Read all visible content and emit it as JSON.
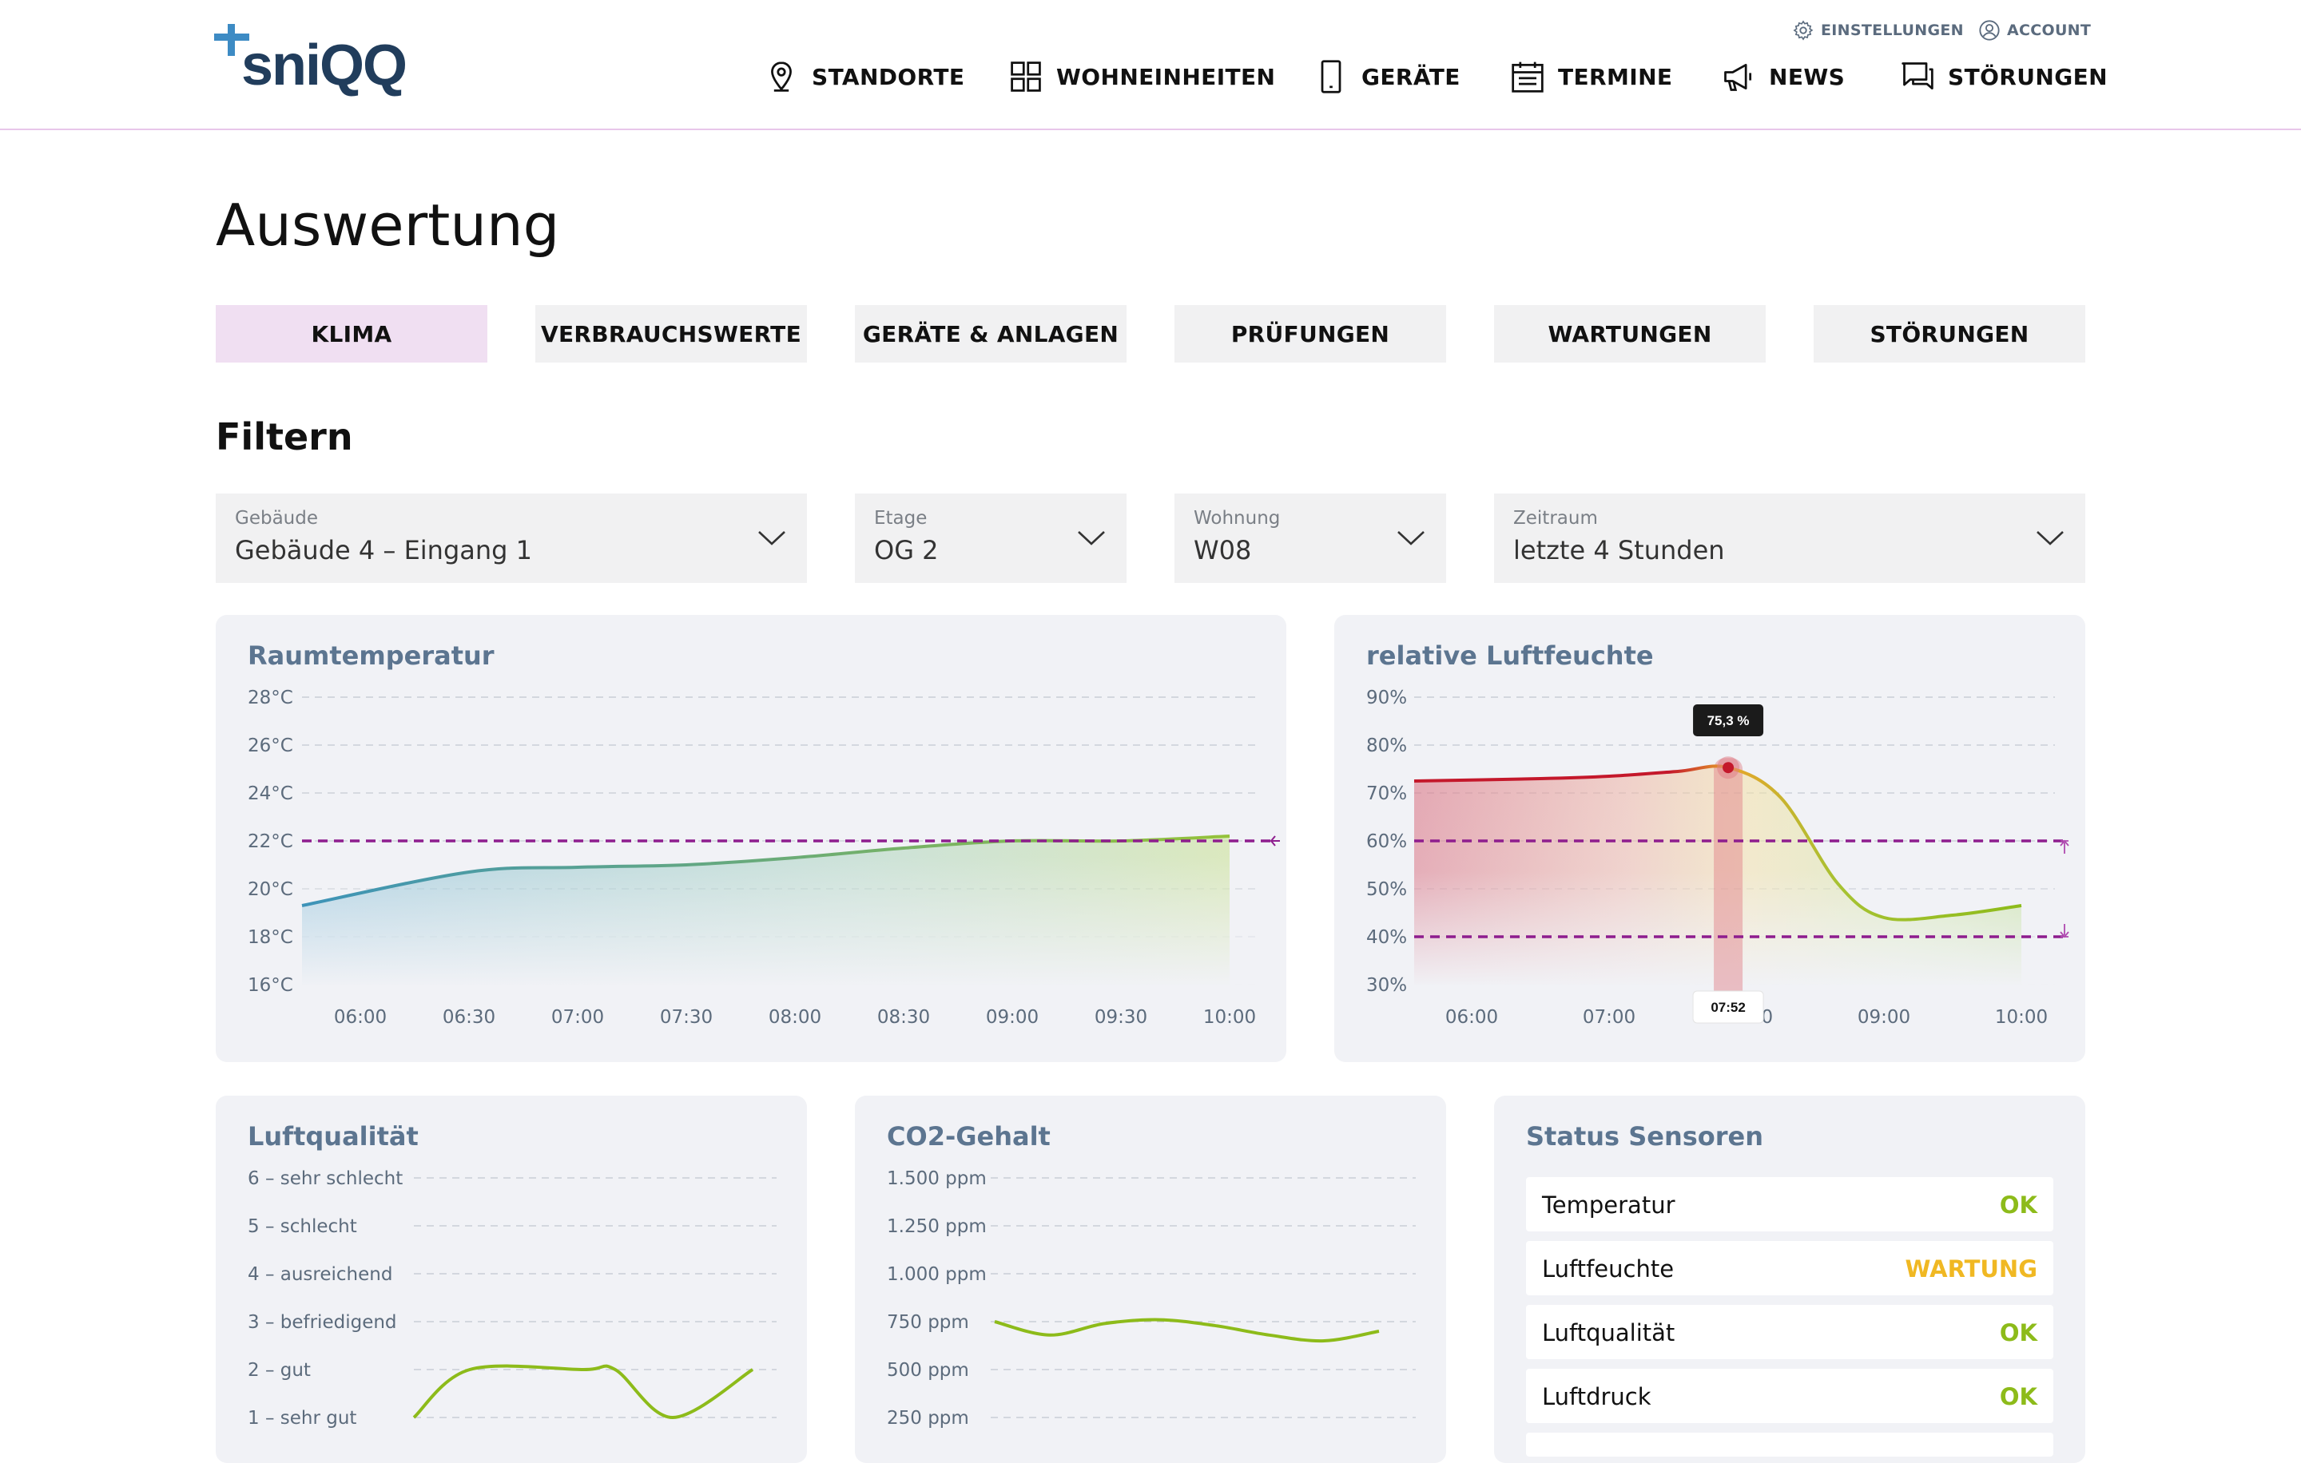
{
  "brand": {
    "logo_text": "sniQQ"
  },
  "colors": {
    "accent_pink": "#f0dff2",
    "ok": "#8dbb1a",
    "warning": "#f0b823",
    "limit_line": "#8e1d8e",
    "title_blue": "#5c7590"
  },
  "header": {
    "utility": [
      {
        "label": "EINSTELLUNGEN",
        "icon": "gear-icon"
      },
      {
        "label": "ACCOUNT",
        "icon": "user-icon"
      }
    ],
    "nav": [
      {
        "label": "STANDORTE",
        "icon": "map-pin-icon"
      },
      {
        "label": "WOHNEINHEITEN",
        "icon": "grid-icon"
      },
      {
        "label": "GERÄTE",
        "icon": "device-icon"
      },
      {
        "label": "TERMINE",
        "icon": "calendar-icon"
      },
      {
        "label": "NEWS",
        "icon": "megaphone-icon"
      },
      {
        "label": "STÖRUNGEN",
        "icon": "chat-icon"
      }
    ]
  },
  "page": {
    "title": "Auswertung"
  },
  "tabs": [
    {
      "label": "KLIMA",
      "active": true
    },
    {
      "label": "VERBRAUCHSWERTE",
      "active": false
    },
    {
      "label": "GERÄTE & ANLAGEN",
      "active": false
    },
    {
      "label": "PRÜFUNGEN",
      "active": false
    },
    {
      "label": "WARTUNGEN",
      "active": false
    },
    {
      "label": "STÖRUNGEN",
      "active": false
    }
  ],
  "filter": {
    "title": "Filtern",
    "fields": [
      {
        "label": "Gebäude",
        "value": "Gebäude 4 – Eingang 1"
      },
      {
        "label": "Etage",
        "value": "OG 2"
      },
      {
        "label": "Wohnung",
        "value": "W08"
      },
      {
        "label": "Zeitraum",
        "value": "letzte 4 Stunden"
      }
    ]
  },
  "chart_data": [
    {
      "type": "area",
      "title": "Raumtemperatur",
      "y_ticks": [
        "28°C",
        "26°C",
        "24°C",
        "22°C",
        "20°C",
        "18°C",
        "16°C"
      ],
      "ylim": [
        16,
        28
      ],
      "x_ticks": [
        "06:00",
        "06:30",
        "07:00",
        "07:30",
        "08:00",
        "08:30",
        "09:00",
        "09:30",
        "10:00"
      ],
      "x": [
        "06:00",
        "06:30",
        "07:00",
        "07:30",
        "08:00",
        "08:30",
        "09:00",
        "09:30",
        "10:00"
      ],
      "values": [
        19.3,
        20.7,
        20.9,
        21.0,
        21.3,
        21.7,
        22.0,
        22.0,
        22.2
      ],
      "limit_lines": [
        22
      ],
      "grid": true
    },
    {
      "type": "area",
      "title": "relative Luftfeuchte",
      "y_ticks": [
        "90%",
        "80%",
        "70%",
        "60%",
        "50%",
        "40%",
        "30%"
      ],
      "ylim": [
        30,
        90
      ],
      "x_ticks": [
        "06:00",
        "07:00",
        "08:00",
        "09:00",
        "10:00"
      ],
      "x": [
        "06:00",
        "06:30",
        "07:00",
        "07:30",
        "07:52",
        "08:15",
        "08:40",
        "09:00",
        "09:30",
        "10:00"
      ],
      "values": [
        72.5,
        73,
        73.5,
        74.5,
        75.3,
        69,
        51,
        44,
        44.5,
        46.5
      ],
      "limit_lines": [
        60,
        40
      ],
      "tooltip": {
        "value": "75,3 %",
        "time": "07:52"
      },
      "grid": true
    },
    {
      "type": "line",
      "title": "Luftqualität",
      "y_ticks": [
        "6 – sehr schlecht",
        "5 – schlecht",
        "4 – ausreichend",
        "3 – befriedigend",
        "2 – gut",
        "1 – sehr gut"
      ],
      "ylim": [
        1,
        6
      ],
      "values": [
        1.0,
        2.0,
        2.0,
        2.0,
        1.0,
        2.0
      ],
      "grid": true
    },
    {
      "type": "line",
      "title": "CO2-Gehalt",
      "y_ticks": [
        "1.500 ppm",
        "1.250 ppm",
        "1.000 ppm",
        "750 ppm",
        "500 ppm",
        "250 ppm"
      ],
      "ylim": [
        250,
        1500
      ],
      "values": [
        750,
        680,
        740,
        760,
        730,
        680,
        650,
        700
      ],
      "grid": true
    }
  ],
  "status": {
    "title": "Status Sensoren",
    "rows": [
      {
        "name": "Temperatur",
        "value": "OK",
        "color": "#8dbb1a"
      },
      {
        "name": "Luftfeuchte",
        "value": "WARTUNG",
        "color": "#f0b823"
      },
      {
        "name": "Luftqualität",
        "value": "OK",
        "color": "#8dbb1a"
      },
      {
        "name": "Luftdruck",
        "value": "OK",
        "color": "#8dbb1a"
      }
    ]
  }
}
